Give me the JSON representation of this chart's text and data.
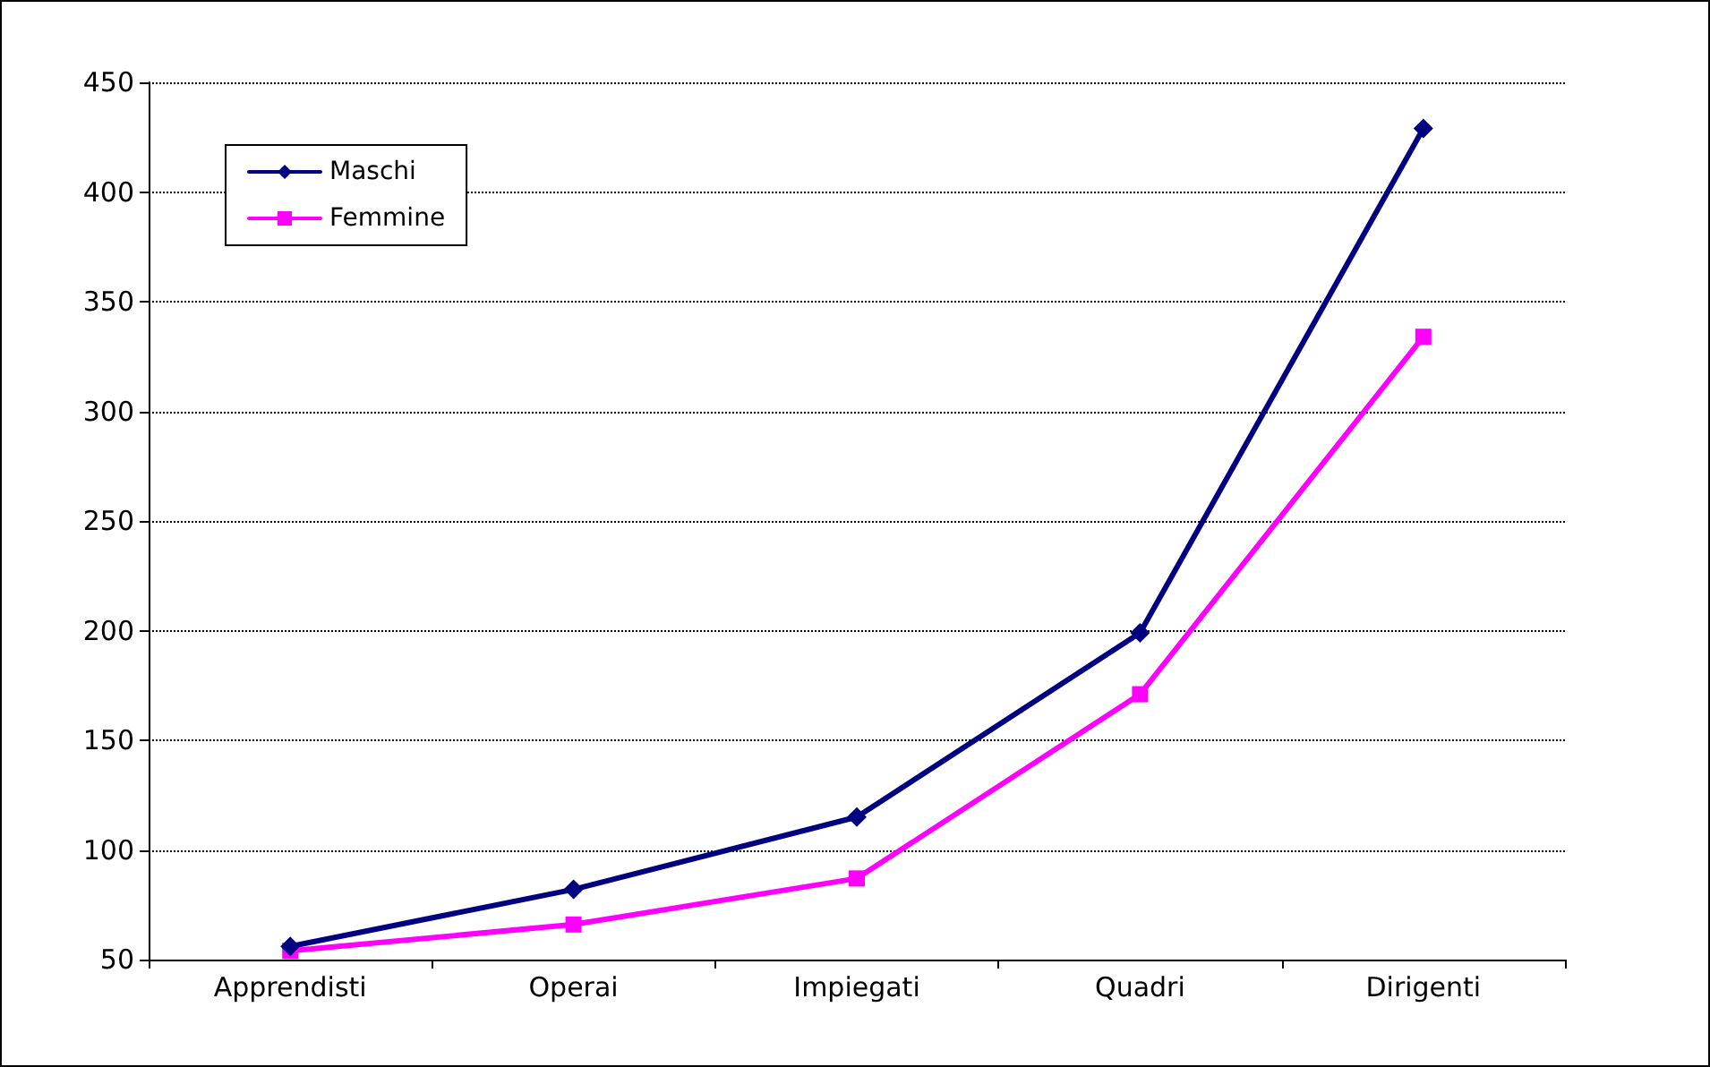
{
  "chart_data": {
    "type": "line",
    "categories": [
      "Apprendisti",
      "Operai",
      "Impiegati",
      "Quadri",
      "Dirigenti"
    ],
    "series": [
      {
        "name": "Maschi",
        "color": "#000080",
        "marker": "diamond",
        "values": [
          56,
          82,
          115,
          199,
          429
        ]
      },
      {
        "name": "Femmine",
        "color": "#ff00ff",
        "marker": "square",
        "values": [
          54,
          66,
          87,
          171,
          334
        ]
      }
    ],
    "ylim": [
      50,
      450
    ],
    "yticks": [
      50,
      100,
      150,
      200,
      250,
      300,
      350,
      400,
      450
    ],
    "grid": "y",
    "legend": "top left",
    "line_style": "solid"
  }
}
